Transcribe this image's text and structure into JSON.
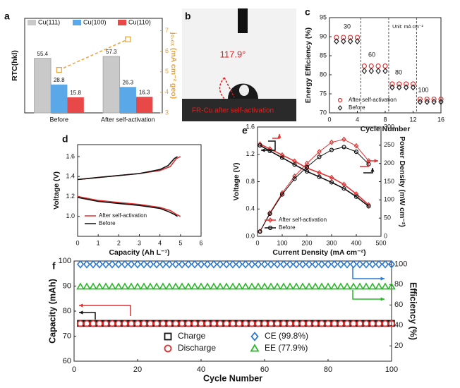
{
  "chart_data": [
    {
      "type": "bar",
      "panel": "a",
      "categories": [
        "Before",
        "After self-activation"
      ],
      "ylabel": "RTC(hkl)",
      "ylim": [
        0,
        96
      ],
      "series": [
        {
          "name": "Cu(111)",
          "color": "#c9c9c9",
          "values": [
            55.4,
            57.3
          ]
        },
        {
          "name": "Cu(100)",
          "color": "#5aa8e8",
          "values": [
            28.8,
            26.3
          ]
        },
        {
          "name": "Cu(110)",
          "color": "#e84848",
          "values": [
            15.8,
            16.3
          ]
        }
      ],
      "y2_values": [
        5.09,
        6.58
      ],
      "y2_color": "#f0a030",
      "y2label": "j₀.₀ₓ (mA cm⁻² geo)",
      "y2lim": [
        3,
        7.6
      ],
      "y2ticks": [
        3,
        4,
        5,
        6,
        7
      ]
    },
    {
      "type": "image",
      "panel": "b",
      "annotations": [
        "117.9°",
        "FR-Cu after self-activation"
      ]
    },
    {
      "type": "scatter",
      "panel": "c",
      "xlabel": "Cycle Number",
      "ylabel": "Energy Efficiency (%)",
      "x": [
        1,
        2,
        3,
        4,
        5,
        6,
        7,
        8,
        9,
        10,
        11,
        12,
        13,
        14,
        15,
        16
      ],
      "xlim": [
        0,
        16
      ],
      "xticks": [
        0,
        4,
        8,
        12,
        16
      ],
      "ylim": [
        70,
        95
      ],
      "yticks": [
        70,
        75,
        80,
        85,
        90,
        95
      ],
      "series": [
        {
          "name": "After self-activation",
          "color": "#e03030",
          "marker": "circle",
          "values": [
            89.8,
            89.8,
            89.8,
            89.8,
            82.3,
            82.3,
            82.3,
            82.3,
            77.6,
            77.6,
            77.6,
            77.6,
            73.6,
            73.6,
            73.6,
            73.6
          ]
        },
        {
          "name": "Before",
          "color": "#222222",
          "marker": "diamond",
          "values": [
            88.8,
            88.8,
            88.8,
            88.8,
            81.0,
            81.0,
            81.0,
            81.0,
            76.7,
            76.7,
            76.7,
            76.7,
            72.9,
            72.9,
            72.9,
            72.9
          ]
        }
      ],
      "annotations": [
        "30",
        "60",
        "80",
        "100",
        "Unit: mA cm⁻²"
      ],
      "legend": "lower left"
    },
    {
      "type": "line",
      "panel": "d",
      "xlabel": "Capacity (Ah L⁻¹)",
      "ylabel": "Voltage (V)",
      "xlim": [
        0,
        6
      ],
      "xticks": [
        0,
        1,
        2,
        3,
        4,
        5,
        6
      ],
      "ylim": [
        0.8,
        1.72
      ],
      "yticks": [
        {
          "value": 1,
          "label": "1.0"
        },
        1.2,
        1.4,
        1.6
      ],
      "series": [
        {
          "name": "After self-activation",
          "color": "#e03030",
          "x": [
            0,
            1,
            2,
            3,
            4,
            4.5,
            4.8,
            5.0,
            5.0,
            0,
            1,
            2,
            3,
            4,
            4.5,
            4.8,
            5.0
          ],
          "values": [
            1.37,
            1.39,
            1.41,
            1.43,
            1.46,
            1.5,
            1.58,
            1.6,
            null,
            1.2,
            1.16,
            1.14,
            1.12,
            1.09,
            1.06,
            1.02,
            1.0
          ]
        },
        {
          "name": "Before",
          "color": "#111111",
          "x": [
            0,
            1,
            2,
            3,
            4,
            4.4,
            4.7,
            4.85,
            4.85,
            0,
            1,
            2,
            3,
            4,
            4.4,
            4.7,
            4.85
          ],
          "values": [
            1.37,
            1.39,
            1.41,
            1.43,
            1.47,
            1.51,
            1.58,
            1.6,
            null,
            1.19,
            1.15,
            1.13,
            1.11,
            1.08,
            1.05,
            1.02,
            1.0
          ]
        }
      ],
      "legend": "lower left"
    },
    {
      "type": "line",
      "panel": "e",
      "xlabel": "Current Density (mA cm⁻²)",
      "ylabel": "Voltage (V)",
      "y2label": "Power Density (mW cm⁻²)",
      "x": [
        10,
        50,
        100,
        150,
        200,
        250,
        300,
        350,
        400,
        450
      ],
      "xlim": [
        0,
        500
      ],
      "xticks": [
        0,
        100,
        200,
        300,
        400,
        500
      ],
      "ylim": [
        0,
        1.6
      ],
      "yticks": [
        {
          "value": 0,
          "label": "0.0"
        },
        0.4,
        0.8,
        1.2,
        1.6
      ],
      "y2lim": [
        0,
        300
      ],
      "y2ticks": [
        0,
        50,
        100,
        150,
        200,
        250,
        300
      ],
      "series": [
        {
          "name": "After self-activation",
          "color": "#e03030",
          "marker": "diamond",
          "values": [
            1.35,
            1.28,
            1.19,
            1.1,
            1.0,
            0.93,
            0.86,
            0.76,
            0.62,
            0.46
          ],
          "y2_values": [
            13.5,
            64,
            119,
            165,
            200,
            232,
            258,
            266,
            248,
            207
          ]
        },
        {
          "name": "Before",
          "color": "#111111",
          "marker": "circle",
          "values": [
            1.33,
            1.25,
            1.15,
            1.05,
            0.95,
            0.87,
            0.79,
            0.7,
            0.58,
            0.44
          ],
          "y2_values": [
            13,
            62,
            115,
            158,
            190,
            218,
            237,
            245,
            232,
            198
          ]
        }
      ],
      "legend": "lower left"
    },
    {
      "type": "scatter",
      "panel": "f",
      "xlabel": "Cycle Number",
      "ylabel": "Capacity (mAh)",
      "y2label": "Efficiency (%)",
      "x": [
        2,
        4,
        6,
        8,
        10,
        12,
        14,
        16,
        18,
        20,
        22,
        24,
        26,
        28,
        30,
        32,
        34,
        36,
        38,
        40,
        42,
        44,
        46,
        48,
        50,
        52,
        54,
        56,
        58,
        60,
        62,
        64,
        66,
        68,
        70,
        72,
        74,
        76,
        78,
        80,
        82,
        84,
        86,
        88,
        90,
        92,
        94,
        96,
        98,
        100
      ],
      "xlim": [
        0,
        100
      ],
      "xticks": [
        0,
        20,
        40,
        60,
        80,
        100
      ],
      "ylim": [
        60,
        100
      ],
      "yticks": [
        60,
        70,
        80,
        90,
        100
      ],
      "y2lim": [
        5,
        103
      ],
      "y2ticks": [
        20,
        40,
        60,
        80,
        100
      ],
      "series": [
        {
          "name": "Charge",
          "color": "#111111",
          "marker": "square",
          "values": [
            75.1,
            75.1,
            75.1,
            75.1,
            75.1,
            75.1,
            75.1,
            75.1,
            75.1,
            75.1,
            75.1,
            75.1,
            75.1,
            75.1,
            75.1,
            75.1,
            75.1,
            75.1,
            75.1,
            75.1,
            75.1,
            75.1,
            75.1,
            75.1,
            75.1,
            75.1,
            75.1,
            75.1,
            75.1,
            75.1,
            75.1,
            75.1,
            75.1,
            75.1,
            75.1,
            75.1,
            75.1,
            75.1,
            75.1,
            75.1,
            75.1,
            75.1,
            75.1,
            75.1,
            75.1,
            75.1,
            75.1,
            75.1,
            75.1,
            75.1
          ]
        },
        {
          "name": "Discharge",
          "color": "#e03030",
          "marker": "circle",
          "values": [
            75,
            75,
            75,
            75,
            75,
            75,
            75,
            75,
            75,
            75,
            75,
            75,
            75,
            75,
            75,
            75,
            75,
            75,
            75,
            75,
            75,
            75,
            75,
            75,
            75,
            75,
            75,
            75,
            75,
            75,
            75,
            75,
            75,
            75,
            75,
            75,
            75,
            75,
            75,
            75,
            75,
            75,
            75,
            75,
            75,
            75,
            75,
            75,
            75,
            75
          ]
        },
        {
          "name": "CE (99.8%)",
          "color": "#2a78d0",
          "marker": "diamond",
          "axis": "y2",
          "values": [
            99.8,
            99.8,
            99.8,
            99.8,
            99.8,
            99.8,
            99.8,
            99.8,
            99.8,
            99.8,
            99.8,
            99.8,
            99.8,
            99.8,
            99.8,
            99.8,
            99.8,
            99.8,
            99.8,
            99.8,
            99.8,
            99.8,
            99.8,
            99.8,
            99.8,
            99.8,
            99.8,
            99.8,
            99.8,
            99.8,
            99.8,
            99.8,
            99.8,
            99.8,
            99.8,
            99.8,
            99.8,
            99.8,
            99.8,
            99.8,
            99.8,
            99.8,
            99.8,
            99.8,
            99.8,
            99.8,
            99.8,
            99.8,
            99.8,
            99.8
          ]
        },
        {
          "name": "EE (77.9%)",
          "color": "#28b828",
          "marker": "triangle",
          "axis": "y2",
          "values": [
            77.9,
            77.9,
            77.9,
            77.9,
            77.9,
            77.9,
            77.9,
            77.9,
            77.9,
            77.9,
            77.9,
            77.9,
            77.9,
            77.9,
            77.9,
            77.9,
            77.9,
            77.9,
            77.9,
            77.9,
            77.9,
            77.9,
            77.9,
            77.9,
            77.9,
            77.9,
            77.9,
            77.9,
            77.9,
            77.9,
            77.9,
            77.9,
            77.9,
            77.9,
            77.9,
            77.9,
            77.9,
            77.9,
            77.9,
            77.9,
            77.9,
            77.9,
            77.9,
            77.9,
            77.9,
            77.9,
            77.9,
            77.9,
            77.9,
            77.9
          ]
        }
      ],
      "legend": "lower center"
    }
  ]
}
